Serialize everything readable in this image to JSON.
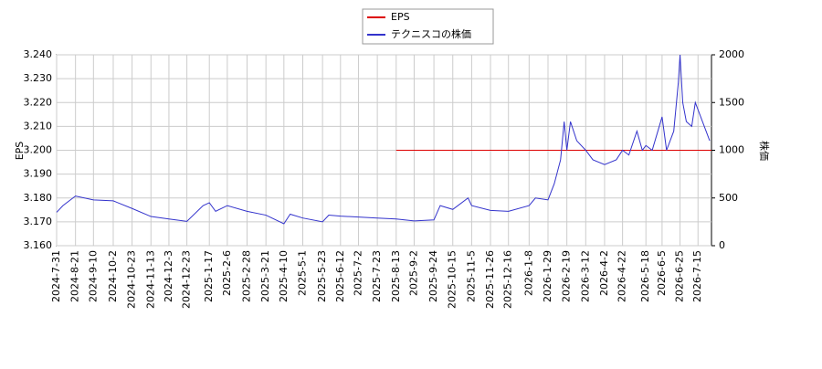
{
  "chart_data": {
    "type": "line",
    "xlim": [
      "2024-7-31",
      "2026-7-30"
    ],
    "xticks": [
      "2024-7-31",
      "2024-8-21",
      "2024-9-10",
      "2024-10-2",
      "2024-10-23",
      "2024-11-13",
      "2024-12-3",
      "2024-12-23",
      "2025-1-17",
      "2025-2-6",
      "2025-2-28",
      "2025-3-21",
      "2025-4-10",
      "2025-5-1",
      "2025-5-23",
      "2025-6-12",
      "2025-7-2",
      "2025-7-23",
      "2025-8-13",
      "2025-9-2",
      "2025-9-24",
      "2025-10-15",
      "2025-11-5",
      "2025-11-26",
      "2025-12-16",
      "2026-1-8",
      "2026-1-29",
      "2026-2-19",
      "2026-3-12",
      "2026-4-2",
      "2026-4-22",
      "2026-5-18",
      "2026-6-5",
      "2026-6-25",
      "2026-7-15"
    ],
    "ylabel": "EPS",
    "y2label": "株価",
    "ylim": [
      3.16,
      3.24
    ],
    "yticks": [
      {
        "value": 3.16,
        "label": "3.160"
      },
      {
        "value": 3.17,
        "label": "3.170"
      },
      {
        "value": 3.18,
        "label": "3.180"
      },
      {
        "value": 3.19,
        "label": "3.190"
      },
      {
        "value": 3.2,
        "label": "3.200"
      },
      {
        "value": 3.21,
        "label": "3.210"
      },
      {
        "value": 3.22,
        "label": "3.220"
      },
      {
        "value": 3.23,
        "label": "3.230"
      },
      {
        "value": 3.24,
        "label": "3.240"
      }
    ],
    "y2lim": [
      0,
      2000
    ],
    "y2ticks": [
      0,
      500,
      1000,
      1500,
      2000
    ],
    "grid": true,
    "series": [
      {
        "name": "EPS",
        "color": "#dd0000",
        "x": [
          "2025-8-13",
          "2026-7-30"
        ],
        "values": [
          3.2,
          3.2
        ]
      },
      {
        "name": "テクニスコの株価",
        "color": "#3333cc",
        "axis": "y2",
        "x": [
          "2024-7-31",
          "2024-8-7",
          "2024-8-21",
          "2024-9-10",
          "2024-10-2",
          "2024-10-23",
          "2024-11-13",
          "2024-12-3",
          "2024-12-23",
          "2025-1-10",
          "2025-1-17",
          "2025-1-24",
          "2025-2-6",
          "2025-2-28",
          "2025-3-21",
          "2025-4-10",
          "2025-4-17",
          "2025-5-1",
          "2025-5-23",
          "2025-5-30",
          "2025-6-12",
          "2025-7-2",
          "2025-7-23",
          "2025-8-13",
          "2025-9-2",
          "2025-9-24",
          "2025-10-1",
          "2025-10-15",
          "2025-11-1",
          "2025-11-5",
          "2025-11-26",
          "2025-12-16",
          "2026-1-8",
          "2026-1-15",
          "2026-1-29",
          "2026-2-5",
          "2026-2-12",
          "2026-2-16",
          "2026-2-19",
          "2026-2-23",
          "2026-3-2",
          "2026-3-12",
          "2026-3-20",
          "2026-4-2",
          "2026-4-15",
          "2026-4-22",
          "2026-4-29",
          "2026-5-8",
          "2026-5-14",
          "2026-5-18",
          "2026-5-25",
          "2026-6-5",
          "2026-6-10",
          "2026-6-18",
          "2026-6-23",
          "2026-6-25",
          "2026-6-28",
          "2026-7-2",
          "2026-7-8",
          "2026-7-12",
          "2026-7-20",
          "2026-7-28"
        ],
        "values": [
          350,
          420,
          520,
          480,
          470,
          390,
          306,
          280,
          255,
          420,
          450,
          360,
          420,
          360,
          320,
          230,
          330,
          290,
          250,
          320,
          310,
          300,
          290,
          280,
          260,
          270,
          420,
          380,
          500,
          420,
          370,
          360,
          420,
          500,
          480,
          650,
          900,
          1300,
          1000,
          1300,
          1100,
          1000,
          900,
          850,
          900,
          1000,
          950,
          1200,
          1000,
          1050,
          1000,
          1350,
          1000,
          1200,
          1700,
          2000,
          1500,
          1300,
          1250,
          1500,
          1300,
          1100
        ]
      }
    ]
  }
}
